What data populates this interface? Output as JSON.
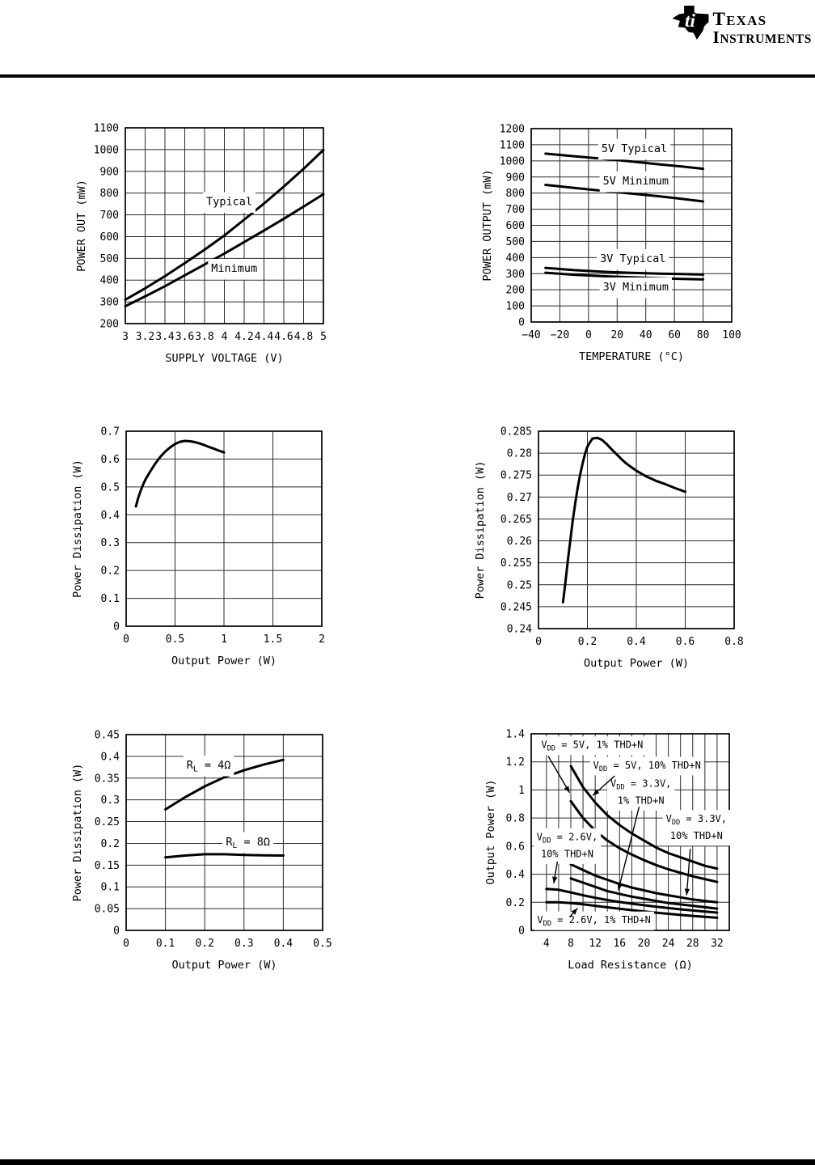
{
  "header": {
    "brand_top": "TEXAS",
    "brand_bottom": "INSTRUMENTS"
  },
  "page": {
    "background": "#ffffff",
    "ink_color": "#000000",
    "grid_color": "#2b2b2b"
  },
  "chart_data": [
    {
      "type": "line",
      "title": "",
      "xlabel": "SUPPLY VOLTAGE (V)",
      "ylabel": "POWER OUT (mW)",
      "xlim": [
        3,
        5
      ],
      "ylim": [
        200,
        1100
      ],
      "grid": true,
      "xticks": [
        3,
        3.2,
        3.4,
        3.6,
        3.8,
        4,
        4.2,
        4.4,
        4.6,
        4.8,
        5
      ],
      "xtick_labels": [
        "3",
        "3.2",
        "3.4",
        "3.6",
        "3.8",
        "4",
        "4.2",
        "4.4",
        "4.6",
        "4.8",
        "5"
      ],
      "yticks": [
        200,
        300,
        400,
        500,
        600,
        700,
        800,
        900,
        1000,
        1100
      ],
      "ylabel_gap": 50,
      "ann_font": 13.5,
      "series": [
        {
          "name": "Typical",
          "x": [
            3,
            3.2,
            3.4,
            3.6,
            3.8,
            4,
            4.2,
            4.4,
            4.6,
            4.8,
            5
          ],
          "y": [
            310,
            362,
            418,
            478,
            540,
            605,
            678,
            752,
            830,
            912,
            998
          ]
        },
        {
          "name": "Minimum",
          "x": [
            3,
            3.2,
            3.4,
            3.6,
            3.8,
            4,
            4.2,
            4.4,
            4.6,
            4.8,
            5
          ],
          "y": [
            280,
            325,
            372,
            422,
            472,
            522,
            575,
            628,
            682,
            738,
            795
          ]
        }
      ],
      "annotations": [
        {
          "lines": [
            "Typical"
          ],
          "x": 4.05,
          "y": 757
        },
        {
          "lines": [
            "Minimum"
          ],
          "x": 4.1,
          "y": 450
        }
      ]
    },
    {
      "type": "line",
      "title": "",
      "xlabel": "TEMPERATURE (°C)",
      "ylabel": "POWER OUTPUT (mW)",
      "xlim": [
        -40,
        100
      ],
      "ylim": [
        0,
        1200
      ],
      "grid": true,
      "xticks": [
        -40,
        -20,
        0,
        20,
        40,
        60,
        80,
        100
      ],
      "xtick_labels": [
        "−40",
        "−20",
        "0",
        "20",
        "40",
        "60",
        "80",
        "100"
      ],
      "yticks": [
        0,
        100,
        200,
        300,
        400,
        500,
        600,
        700,
        800,
        900,
        1000,
        1100,
        1200
      ],
      "ylabel_gap": 50,
      "ann_font": 13.5,
      "series": [
        {
          "name": "5V Typical",
          "x": [
            -30,
            -10,
            10,
            30,
            50,
            65,
            80
          ],
          "y": [
            1045,
            1029,
            1013,
            996,
            978,
            965,
            951
          ]
        },
        {
          "name": "5V Minimum",
          "x": [
            -30,
            -10,
            10,
            30,
            50,
            65,
            80
          ],
          "y": [
            851,
            832,
            814,
            797,
            779,
            764,
            748
          ]
        },
        {
          "name": "3V Typical",
          "x": [
            -30,
            -10,
            10,
            30,
            50,
            65,
            80
          ],
          "y": [
            336,
            322,
            312,
            305,
            300,
            297,
            294
          ]
        },
        {
          "name": "3V Minimum",
          "x": [
            -30,
            -10,
            10,
            30,
            50,
            65,
            80
          ],
          "y": [
            306,
            293,
            284,
            277,
            271,
            267,
            264
          ]
        }
      ],
      "annotations": [
        {
          "lines": [
            "5V Typical"
          ],
          "x": 32,
          "y": 1072
        },
        {
          "lines": [
            "5V Minimum"
          ],
          "x": 33,
          "y": 870
        },
        {
          "lines": [
            "3V Typical"
          ],
          "x": 31,
          "y": 388
        },
        {
          "lines": [
            "3V Minimum"
          ],
          "x": 33,
          "y": 212
        }
      ]
    },
    {
      "type": "line",
      "title": "",
      "xlabel": "Output Power (W)",
      "ylabel": "Power Dissipation (W)",
      "xlim": [
        0,
        2
      ],
      "ylim": [
        0,
        0.7
      ],
      "grid": true,
      "xticks": [
        0,
        0.5,
        1,
        1.5,
        2
      ],
      "yticks": [
        0,
        0.1,
        0.2,
        0.3,
        0.4,
        0.5,
        0.6,
        0.7
      ],
      "ylabel_gap": 56,
      "series": [
        {
          "name": "Power Dissipation",
          "x": [
            0.1,
            0.125,
            0.15,
            0.175,
            0.2,
            0.25,
            0.3,
            0.35,
            0.4,
            0.45,
            0.5,
            0.55,
            0.6,
            0.65,
            0.7,
            0.75,
            0.8,
            0.85,
            0.9,
            0.95,
            1.0
          ],
          "y": [
            0.43,
            0.462,
            0.488,
            0.51,
            0.528,
            0.558,
            0.585,
            0.608,
            0.627,
            0.642,
            0.654,
            0.662,
            0.665,
            0.664,
            0.661,
            0.656,
            0.65,
            0.643,
            0.637,
            0.63,
            0.624
          ]
        }
      ],
      "annotations": []
    },
    {
      "type": "line",
      "title": "",
      "xlabel": "Output Power (W)",
      "ylabel": "Power Dissipation (W)",
      "xlim": [
        0,
        0.8
      ],
      "ylim": [
        0.24,
        0.285
      ],
      "grid": true,
      "xticks": [
        0,
        0.2,
        0.4,
        0.6,
        0.8
      ],
      "yticks": [
        0.24,
        0.245,
        0.25,
        0.255,
        0.26,
        0.265,
        0.27,
        0.275,
        0.28,
        0.285
      ],
      "ylabel_gap": 68,
      "series": [
        {
          "name": "Power Dissipation",
          "x": [
            0.1,
            0.11,
            0.12,
            0.13,
            0.14,
            0.15,
            0.16,
            0.17,
            0.18,
            0.19,
            0.2,
            0.22,
            0.24,
            0.26,
            0.28,
            0.3,
            0.32,
            0.34,
            0.36,
            0.38,
            0.4,
            0.44,
            0.48,
            0.52,
            0.56,
            0.6
          ],
          "y": [
            0.246,
            0.2505,
            0.2555,
            0.26,
            0.2645,
            0.2685,
            0.272,
            0.275,
            0.2775,
            0.2798,
            0.2815,
            0.2833,
            0.2835,
            0.283,
            0.282,
            0.2808,
            0.2797,
            0.2786,
            0.2776,
            0.2768,
            0.276,
            0.2747,
            0.2737,
            0.2729,
            0.272,
            0.2712
          ]
        }
      ],
      "annotations": []
    },
    {
      "type": "line",
      "title": "",
      "xlabel": "Output Power (W)",
      "ylabel": "Power Dissipation (W)",
      "xlim": [
        0,
        0.5
      ],
      "ylim": [
        0,
        0.45
      ],
      "grid": true,
      "xticks": [
        0,
        0.1,
        0.2,
        0.3,
        0.4,
        0.5
      ],
      "yticks": [
        0,
        0.05,
        0.1,
        0.15,
        0.2,
        0.25,
        0.3,
        0.35,
        0.4,
        0.45
      ],
      "ylabel_gap": 56,
      "ann_font": 13.5,
      "series": [
        {
          "name": "RL = 4 ohm",
          "x": [
            0.1,
            0.15,
            0.2,
            0.25,
            0.3,
            0.35,
            0.4
          ],
          "y": [
            0.278,
            0.306,
            0.331,
            0.352,
            0.368,
            0.381,
            0.392
          ]
        },
        {
          "name": "RL = 8 ohm",
          "x": [
            0.1,
            0.15,
            0.2,
            0.25,
            0.3,
            0.35,
            0.4
          ],
          "y": [
            0.168,
            0.172,
            0.175,
            0.175,
            0.1735,
            0.1725,
            0.172
          ]
        }
      ],
      "annotations": [
        {
          "lines": [
            "R~L~ = 4Ω"
          ],
          "x": 0.21,
          "y": 0.378
        },
        {
          "lines": [
            "R~L~ = 8Ω"
          ],
          "x": 0.31,
          "y": 0.202
        }
      ]
    },
    {
      "type": "line",
      "title": "",
      "xlabel": "Load Resistance (Ω)",
      "ylabel": "Output Power (W)",
      "xlim": [
        1.5,
        34
      ],
      "ylim": [
        0,
        1.4
      ],
      "grid": true,
      "xgrid": [
        4,
        6,
        8,
        10,
        12,
        14,
        16,
        18,
        20,
        22,
        24,
        26,
        28,
        30,
        32
      ],
      "xticks": [
        4,
        8,
        12,
        16,
        20,
        24,
        28,
        32
      ],
      "yticks": [
        0,
        0.2,
        0.4,
        0.6,
        0.8,
        1,
        1.2,
        1.4
      ],
      "ylabel_gap": 46,
      "ann_font": 12,
      "series": [
        {
          "name": "VDD = 5V, 10% THD+N",
          "x": [
            8,
            10,
            12,
            14,
            16,
            18,
            20,
            22,
            24,
            26,
            28,
            30,
            32
          ],
          "y": [
            1.17,
            1.02,
            0.91,
            0.82,
            0.75,
            0.69,
            0.64,
            0.59,
            0.55,
            0.52,
            0.49,
            0.46,
            0.44
          ]
        },
        {
          "name": "VDD = 5V, 1% THD+N",
          "x": [
            8,
            10,
            12,
            14,
            16,
            18,
            20,
            22,
            24,
            26,
            28,
            30,
            32
          ],
          "y": [
            0.92,
            0.8,
            0.71,
            0.64,
            0.585,
            0.54,
            0.5,
            0.465,
            0.435,
            0.41,
            0.385,
            0.365,
            0.345
          ]
        },
        {
          "name": "VDD = 3.3V, 10% THD+N",
          "x": [
            8,
            10,
            12,
            14,
            16,
            18,
            20,
            22,
            24,
            26,
            28,
            30,
            32
          ],
          "y": [
            0.47,
            0.43,
            0.39,
            0.36,
            0.33,
            0.305,
            0.285,
            0.265,
            0.25,
            0.235,
            0.22,
            0.21,
            0.2
          ]
        },
        {
          "name": "VDD = 3.3V, 1% THD+N",
          "x": [
            8,
            10,
            12,
            14,
            16,
            18,
            20,
            22,
            24,
            26,
            28,
            30,
            32
          ],
          "y": [
            0.37,
            0.34,
            0.31,
            0.28,
            0.26,
            0.24,
            0.225,
            0.21,
            0.195,
            0.185,
            0.175,
            0.165,
            0.155
          ]
        },
        {
          "name": "VDD = 2.6V, 10% THD+N",
          "x": [
            4,
            6,
            8,
            10,
            12,
            14,
            16,
            18,
            20,
            22,
            24,
            26,
            28,
            30,
            32
          ],
          "y": [
            0.295,
            0.289,
            0.27,
            0.25,
            0.232,
            0.216,
            0.202,
            0.19,
            0.179,
            0.169,
            0.159,
            0.15,
            0.142,
            0.134,
            0.127
          ]
        },
        {
          "name": "VDD = 2.6V, 1% THD+N",
          "x": [
            4,
            6,
            8,
            10,
            12,
            14,
            16,
            18,
            20,
            22,
            24,
            26,
            28,
            30,
            32
          ],
          "y": [
            0.2,
            0.2,
            0.195,
            0.186,
            0.175,
            0.164,
            0.154,
            0.144,
            0.135,
            0.126,
            0.118,
            0.11,
            0.103,
            0.096,
            0.09
          ]
        }
      ],
      "annotations": [
        {
          "lines": [
            "V~DD~ = 5V, 1% THD+N"
          ],
          "x": 11.5,
          "y": 1.315,
          "arrow": {
            "from": [
              4.3,
              1.24
            ],
            "to": [
              7.8,
              0.98
            ]
          }
        },
        {
          "lines": [
            "V~DD~ = 5V, 10% THD+N"
          ],
          "x": 20.5,
          "y": 1.17,
          "arrow": {
            "from": [
              15.2,
              1.1
            ],
            "to": [
              11.6,
              0.96
            ]
          }
        },
        {
          "lines": [
            "V~DD~ = 3.3V,",
            "1% THD+N"
          ],
          "x": 19.5,
          "y": 0.98,
          "arrow": {
            "from": [
              19.2,
              0.88
            ],
            "to": [
              15.8,
              0.285
            ]
          }
        },
        {
          "lines": [
            "V~DD~ = 3.3V,",
            "10% THD+N"
          ],
          "x": 28.6,
          "y": 0.73,
          "arrow": {
            "from": [
              27.6,
              0.58
            ],
            "to": [
              27.0,
              0.25
            ]
          }
        },
        {
          "lines": [
            "V~DD~ = 2.6V,",
            "10% THD+N"
          ],
          "x": 7.4,
          "y": 0.6,
          "arrow": {
            "from": [
              5.8,
              0.49
            ],
            "to": [
              5.2,
              0.335
            ]
          }
        },
        {
          "lines": [
            "V~DD~ = 2.6V, 1% THD+N"
          ],
          "x": 11.8,
          "y": 0.068,
          "arrow": {
            "from": [
              7.8,
              0.095
            ],
            "to": [
              9.1,
              0.158
            ]
          }
        }
      ]
    }
  ]
}
